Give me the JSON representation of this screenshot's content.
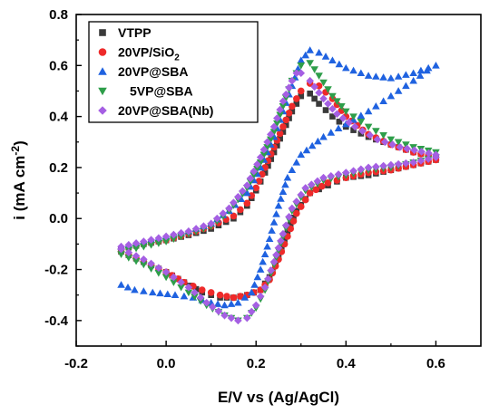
{
  "chart_data": {
    "type": "scatter",
    "title": "",
    "xlabel": "E/V vs (Ag/AgCl)",
    "ylabel_parts": [
      "i (mA cm",
      "-2",
      ")"
    ],
    "xlim": [
      -0.2,
      0.7
    ],
    "ylim": [
      -0.5,
      0.8
    ],
    "x_ticks": [
      -0.2,
      0.0,
      0.2,
      0.4,
      0.6
    ],
    "x_tick_labels": [
      "-0.2",
      "0.0",
      "0.2",
      "0.4",
      "0.6"
    ],
    "y_ticks": [
      -0.4,
      -0.2,
      0.0,
      0.2,
      0.4,
      0.6,
      0.8
    ],
    "y_tick_labels": [
      "-0.4",
      "-0.2",
      "0.0",
      "0.2",
      "0.4",
      "0.6",
      "0.8"
    ],
    "grid": false,
    "legend_position": "top-left",
    "series": [
      {
        "name": "VTPP",
        "name_parts": [
          "VTPP"
        ],
        "marker": "square",
        "color": "#3a3a3a",
        "forward": [
          [
            -0.1,
            -0.12
          ],
          [
            -0.05,
            -0.1
          ],
          [
            0.0,
            -0.085
          ],
          [
            0.05,
            -0.065
          ],
          [
            0.1,
            -0.04
          ],
          [
            0.15,
            0.0
          ],
          [
            0.18,
            0.05
          ],
          [
            0.2,
            0.11
          ],
          [
            0.22,
            0.18
          ],
          [
            0.24,
            0.26
          ],
          [
            0.26,
            0.34
          ],
          [
            0.28,
            0.42
          ],
          [
            0.3,
            0.48
          ],
          [
            0.32,
            0.49
          ],
          [
            0.34,
            0.45
          ],
          [
            0.37,
            0.4
          ],
          [
            0.4,
            0.36
          ],
          [
            0.45,
            0.32
          ],
          [
            0.5,
            0.29
          ],
          [
            0.55,
            0.26
          ],
          [
            0.6,
            0.24
          ]
        ],
        "reverse": [
          [
            0.6,
            0.23
          ],
          [
            0.55,
            0.21
          ],
          [
            0.5,
            0.19
          ],
          [
            0.45,
            0.17
          ],
          [
            0.4,
            0.16
          ],
          [
            0.36,
            0.13
          ],
          [
            0.32,
            0.1
          ],
          [
            0.29,
            0.03
          ],
          [
            0.27,
            -0.05
          ],
          [
            0.25,
            -0.15
          ],
          [
            0.23,
            -0.23
          ],
          [
            0.21,
            -0.28
          ],
          [
            0.18,
            -0.3
          ],
          [
            0.15,
            -0.31
          ],
          [
            0.12,
            -0.31
          ],
          [
            0.08,
            -0.29
          ],
          [
            0.04,
            -0.25
          ],
          [
            0.0,
            -0.21
          ],
          [
            -0.05,
            -0.17
          ],
          [
            -0.1,
            -0.13
          ]
        ]
      },
      {
        "name": "20VP/SiO2",
        "name_parts": [
          "20VP/SiO",
          "2"
        ],
        "marker": "circle",
        "color": "#ee2a2a",
        "forward": [
          [
            -0.1,
            -0.12
          ],
          [
            -0.05,
            -0.1
          ],
          [
            0.0,
            -0.085
          ],
          [
            0.05,
            -0.06
          ],
          [
            0.1,
            -0.03
          ],
          [
            0.15,
            0.01
          ],
          [
            0.18,
            0.06
          ],
          [
            0.2,
            0.12
          ],
          [
            0.22,
            0.2
          ],
          [
            0.24,
            0.28
          ],
          [
            0.26,
            0.36
          ],
          [
            0.28,
            0.44
          ],
          [
            0.3,
            0.5
          ],
          [
            0.32,
            0.53
          ],
          [
            0.34,
            0.52
          ],
          [
            0.37,
            0.47
          ],
          [
            0.4,
            0.4
          ],
          [
            0.45,
            0.33
          ],
          [
            0.5,
            0.29
          ],
          [
            0.55,
            0.26
          ],
          [
            0.6,
            0.24
          ]
        ],
        "reverse": [
          [
            0.6,
            0.23
          ],
          [
            0.55,
            0.21
          ],
          [
            0.5,
            0.19
          ],
          [
            0.45,
            0.18
          ],
          [
            0.4,
            0.16
          ],
          [
            0.36,
            0.14
          ],
          [
            0.32,
            0.1
          ],
          [
            0.29,
            0.02
          ],
          [
            0.27,
            -0.07
          ],
          [
            0.25,
            -0.16
          ],
          [
            0.23,
            -0.24
          ],
          [
            0.21,
            -0.28
          ],
          [
            0.18,
            -0.3
          ],
          [
            0.15,
            -0.31
          ],
          [
            0.12,
            -0.3
          ],
          [
            0.08,
            -0.28
          ],
          [
            0.04,
            -0.25
          ],
          [
            0.0,
            -0.21
          ],
          [
            -0.05,
            -0.17
          ],
          [
            -0.1,
            -0.13
          ]
        ]
      },
      {
        "name": "20VP@SBA",
        "name_parts": [
          "20VP@SBA"
        ],
        "marker": "triangle-up",
        "color": "#1f62e0",
        "forward": [
          [
            -0.1,
            -0.11
          ],
          [
            -0.05,
            -0.09
          ],
          [
            0.0,
            -0.07
          ],
          [
            0.05,
            -0.05
          ],
          [
            0.1,
            -0.02
          ],
          [
            0.14,
            0.03
          ],
          [
            0.18,
            0.1
          ],
          [
            0.21,
            0.2
          ],
          [
            0.24,
            0.32
          ],
          [
            0.26,
            0.42
          ],
          [
            0.28,
            0.52
          ],
          [
            0.3,
            0.62
          ],
          [
            0.32,
            0.66
          ],
          [
            0.34,
            0.65
          ],
          [
            0.37,
            0.62
          ],
          [
            0.4,
            0.59
          ],
          [
            0.45,
            0.56
          ],
          [
            0.5,
            0.55
          ],
          [
            0.55,
            0.57
          ],
          [
            0.6,
            0.6
          ]
        ],
        "reverse": [
          [
            0.58,
            0.58
          ],
          [
            0.55,
            0.54
          ],
          [
            0.5,
            0.48
          ],
          [
            0.45,
            0.42
          ],
          [
            0.4,
            0.37
          ],
          [
            0.35,
            0.32
          ],
          [
            0.3,
            0.25
          ],
          [
            0.27,
            0.16
          ],
          [
            0.25,
            0.05
          ],
          [
            0.23,
            -0.08
          ],
          [
            0.21,
            -0.2
          ],
          [
            0.19,
            -0.29
          ],
          [
            0.16,
            -0.33
          ],
          [
            0.13,
            -0.34
          ],
          [
            0.1,
            -0.33
          ],
          [
            0.06,
            -0.31
          ],
          [
            0.02,
            -0.3
          ],
          [
            -0.03,
            -0.29
          ],
          [
            -0.07,
            -0.28
          ],
          [
            -0.1,
            -0.26
          ]
        ]
      },
      {
        "name": "5VP@SBA",
        "name_parts": [
          "5VP@SBA"
        ],
        "marker": "triangle-down",
        "color": "#2e9e4a",
        "forward": [
          [
            -0.1,
            -0.13
          ],
          [
            -0.05,
            -0.11
          ],
          [
            0.0,
            -0.09
          ],
          [
            0.05,
            -0.06
          ],
          [
            0.1,
            -0.03
          ],
          [
            0.14,
            0.03
          ],
          [
            0.18,
            0.12
          ],
          [
            0.21,
            0.22
          ],
          [
            0.24,
            0.34
          ],
          [
            0.26,
            0.44
          ],
          [
            0.28,
            0.54
          ],
          [
            0.3,
            0.6
          ],
          [
            0.32,
            0.61
          ],
          [
            0.34,
            0.56
          ],
          [
            0.37,
            0.48
          ],
          [
            0.4,
            0.42
          ],
          [
            0.45,
            0.36
          ],
          [
            0.5,
            0.31
          ],
          [
            0.55,
            0.28
          ],
          [
            0.6,
            0.26
          ]
        ],
        "reverse": [
          [
            0.6,
            0.24
          ],
          [
            0.55,
            0.22
          ],
          [
            0.5,
            0.2
          ],
          [
            0.45,
            0.19
          ],
          [
            0.4,
            0.17
          ],
          [
            0.35,
            0.15
          ],
          [
            0.31,
            0.11
          ],
          [
            0.28,
            0.03
          ],
          [
            0.26,
            -0.07
          ],
          [
            0.24,
            -0.18
          ],
          [
            0.22,
            -0.28
          ],
          [
            0.2,
            -0.35
          ],
          [
            0.18,
            -0.39
          ],
          [
            0.16,
            -0.4
          ],
          [
            0.13,
            -0.38
          ],
          [
            0.09,
            -0.34
          ],
          [
            0.05,
            -0.29
          ],
          [
            0.0,
            -0.23
          ],
          [
            -0.05,
            -0.18
          ],
          [
            -0.1,
            -0.14
          ]
        ]
      },
      {
        "name": "20VP@SBA(Nb)",
        "name_parts": [
          "20VP@SBA(Nb)"
        ],
        "marker": "diamond",
        "color": "#a55fe3",
        "forward": [
          [
            -0.1,
            -0.11
          ],
          [
            -0.05,
            -0.09
          ],
          [
            0.0,
            -0.07
          ],
          [
            0.05,
            -0.05
          ],
          [
            0.1,
            -0.02
          ],
          [
            0.14,
            0.04
          ],
          [
            0.18,
            0.13
          ],
          [
            0.21,
            0.24
          ],
          [
            0.24,
            0.36
          ],
          [
            0.26,
            0.46
          ],
          [
            0.28,
            0.54
          ],
          [
            0.29,
            0.57
          ],
          [
            0.3,
            0.57
          ],
          [
            0.32,
            0.54
          ],
          [
            0.35,
            0.47
          ],
          [
            0.38,
            0.41
          ],
          [
            0.42,
            0.36
          ],
          [
            0.47,
            0.31
          ],
          [
            0.52,
            0.28
          ],
          [
            0.6,
            0.25
          ]
        ],
        "reverse": [
          [
            0.6,
            0.24
          ],
          [
            0.55,
            0.22
          ],
          [
            0.5,
            0.21
          ],
          [
            0.45,
            0.2
          ],
          [
            0.4,
            0.18
          ],
          [
            0.35,
            0.16
          ],
          [
            0.31,
            0.12
          ],
          [
            0.28,
            0.04
          ],
          [
            0.26,
            -0.06
          ],
          [
            0.24,
            -0.17
          ],
          [
            0.22,
            -0.27
          ],
          [
            0.2,
            -0.34
          ],
          [
            0.18,
            -0.39
          ],
          [
            0.16,
            -0.4
          ],
          [
            0.13,
            -0.38
          ],
          [
            0.09,
            -0.33
          ],
          [
            0.05,
            -0.27
          ],
          [
            0.0,
            -0.21
          ],
          [
            -0.05,
            -0.16
          ],
          [
            -0.1,
            -0.12
          ]
        ]
      }
    ]
  }
}
